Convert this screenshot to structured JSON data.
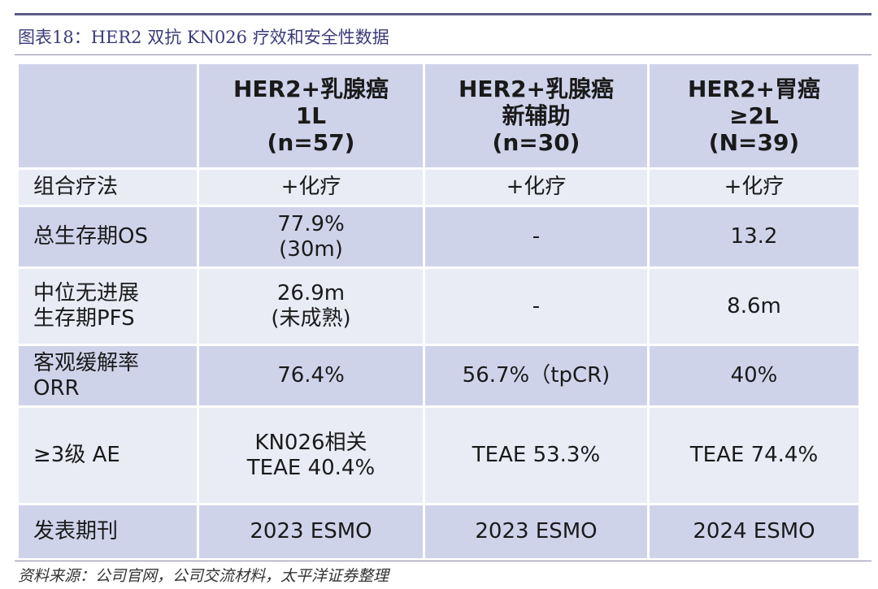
{
  "title": "图表18：HER2 双抗 KN026 疗效和安全性数据",
  "source": "资料来源：公司官网，公司交流材料，太平洋证券整理",
  "table": {
    "headers": [
      {
        "lines": [
          ""
        ]
      },
      {
        "lines": [
          "HER2+乳腺癌",
          "1L",
          "(n=57)"
        ]
      },
      {
        "lines": [
          "HER2+乳腺癌",
          "新辅助",
          "(n=30)"
        ]
      },
      {
        "lines": [
          "HER2+胃癌",
          "≥2L",
          "(N=39)"
        ]
      }
    ],
    "rows": [
      {
        "label": [
          "组合疗法"
        ],
        "cells": [
          [
            "+化疗"
          ],
          [
            "+化疗"
          ],
          [
            "+化疗"
          ]
        ]
      },
      {
        "label": [
          "总生存期OS"
        ],
        "cells": [
          [
            "77.9%",
            "(30m)"
          ],
          [
            "-"
          ],
          [
            "13.2"
          ]
        ]
      },
      {
        "label": [
          "中位无进展",
          "生存期PFS"
        ],
        "cells": [
          [
            "26.9m",
            "(未成熟)"
          ],
          [
            "-"
          ],
          [
            "8.6m"
          ]
        ]
      },
      {
        "label": [
          "客观缓解率",
          "ORR"
        ],
        "cells": [
          [
            "76.4%"
          ],
          [
            "56.7%（tpCR)"
          ],
          [
            "40%"
          ]
        ]
      },
      {
        "label": [
          "≥3级 AE"
        ],
        "cells": [
          [
            "KN026相关",
            "TEAE 40.4%"
          ],
          [
            "TEAE 53.3%"
          ],
          [
            "TEAE 74.4%"
          ]
        ]
      },
      {
        "label": [
          "发表期刊"
        ],
        "cells": [
          [
            "2023 ESMO"
          ],
          [
            "2023 ESMO"
          ],
          [
            "2024 ESMO"
          ]
        ]
      }
    ]
  }
}
